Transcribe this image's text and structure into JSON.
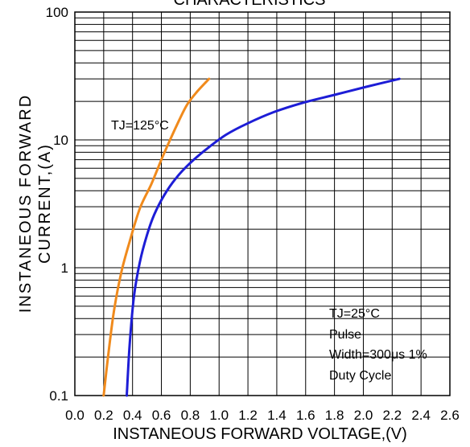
{
  "chart_data": {
    "type": "line",
    "title": "CHARACTERISTICS",
    "xlabel": "INSTANEOUS FORWARD VOLTAGE,(V)",
    "ylabel_lines": [
      "INSTANEOUS FORWARD",
      "CURRENT,(A)"
    ],
    "x_scale": "linear",
    "y_scale": "log",
    "xlim": [
      0.0,
      2.6
    ],
    "ylim": [
      0.1,
      100
    ],
    "grid": true,
    "x_ticks": [
      "0.0",
      "0.2",
      "0.4",
      "0.6",
      "0.8",
      "1.0",
      "1.2",
      "1.4",
      "1.6",
      "1.8",
      "2.0",
      "2.2",
      "2.4",
      "2.6"
    ],
    "y_ticks": [
      "0.1",
      "1",
      "10",
      "100"
    ],
    "series": [
      {
        "name": "TJ=125°C",
        "color": "#f08a1c",
        "x": [
          0.2,
          0.23,
          0.27,
          0.32,
          0.38,
          0.45,
          0.53,
          0.6,
          0.66,
          0.72,
          0.78,
          0.85,
          0.93
        ],
        "y": [
          0.1,
          0.2,
          0.45,
          0.9,
          1.6,
          2.9,
          4.5,
          7.0,
          10.0,
          14.0,
          19.0,
          24.0,
          30.0
        ]
      },
      {
        "name": "TJ=25°C",
        "color": "#1d1dd6",
        "x": [
          0.36,
          0.38,
          0.41,
          0.45,
          0.5,
          0.55,
          0.62,
          0.7,
          0.8,
          0.92,
          1.05,
          1.2,
          1.38,
          1.58,
          1.8,
          2.02,
          2.25
        ],
        "y": [
          0.1,
          0.25,
          0.6,
          1.1,
          1.8,
          2.6,
          3.7,
          5.0,
          6.6,
          8.6,
          11.0,
          13.5,
          16.5,
          19.5,
          22.5,
          26.0,
          30.0
        ]
      }
    ],
    "annotations": {
      "tj125": "TJ=125°C",
      "tj25": "TJ=25°C",
      "pulse": "Pulse",
      "width": "Width=300μs 1%",
      "duty": "Duty Cycle"
    }
  }
}
